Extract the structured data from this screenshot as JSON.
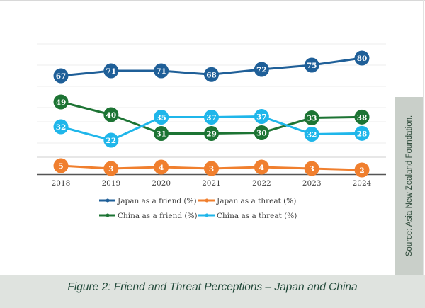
{
  "caption": "Figure 2: Friend and Threat Perceptions – Japan and China",
  "source": "Source: Asia New Zealand Foundation.",
  "chart_data": {
    "type": "line",
    "title": "Figure 2: Friend and Threat Perceptions – Japan and China",
    "xlabel": "",
    "ylabel": "",
    "x": [
      "2018",
      "2019",
      "2020",
      "2021",
      "2022",
      "2023",
      "2024"
    ],
    "grid": true,
    "legend_position": "bottom",
    "series": [
      {
        "name": "Japan as a friend (%)",
        "color": "#1f5f98",
        "values": [
          67,
          71,
          71,
          68,
          72,
          75,
          80
        ],
        "labels": [
          "67",
          "71",
          "71",
          "68",
          "72",
          "75",
          "80"
        ]
      },
      {
        "name": "Japan as a threat (%)",
        "color": "#f07f2e",
        "values": [
          5,
          3,
          4,
          3,
          4,
          3,
          2
        ],
        "labels": [
          "5",
          "3",
          "4",
          "3",
          "4",
          "3",
          "2"
        ]
      },
      {
        "name": "China as a friend (%)",
        "color": "#1d7434",
        "values": [
          49,
          40,
          31,
          29,
          30,
          33,
          38
        ],
        "labels": [
          "49",
          "40",
          "31",
          "29",
          "30",
          "33",
          "38"
        ]
      },
      {
        "name": "China as a threat (%)",
        "color": "#1fb6ea",
        "values": [
          32,
          22,
          35,
          37,
          37,
          32,
          28
        ],
        "labels": [
          "32",
          "22",
          "35",
          "37",
          "37",
          "32",
          "28"
        ]
      }
    ],
    "draw_order": [
      1,
      0,
      2,
      3
    ]
  }
}
